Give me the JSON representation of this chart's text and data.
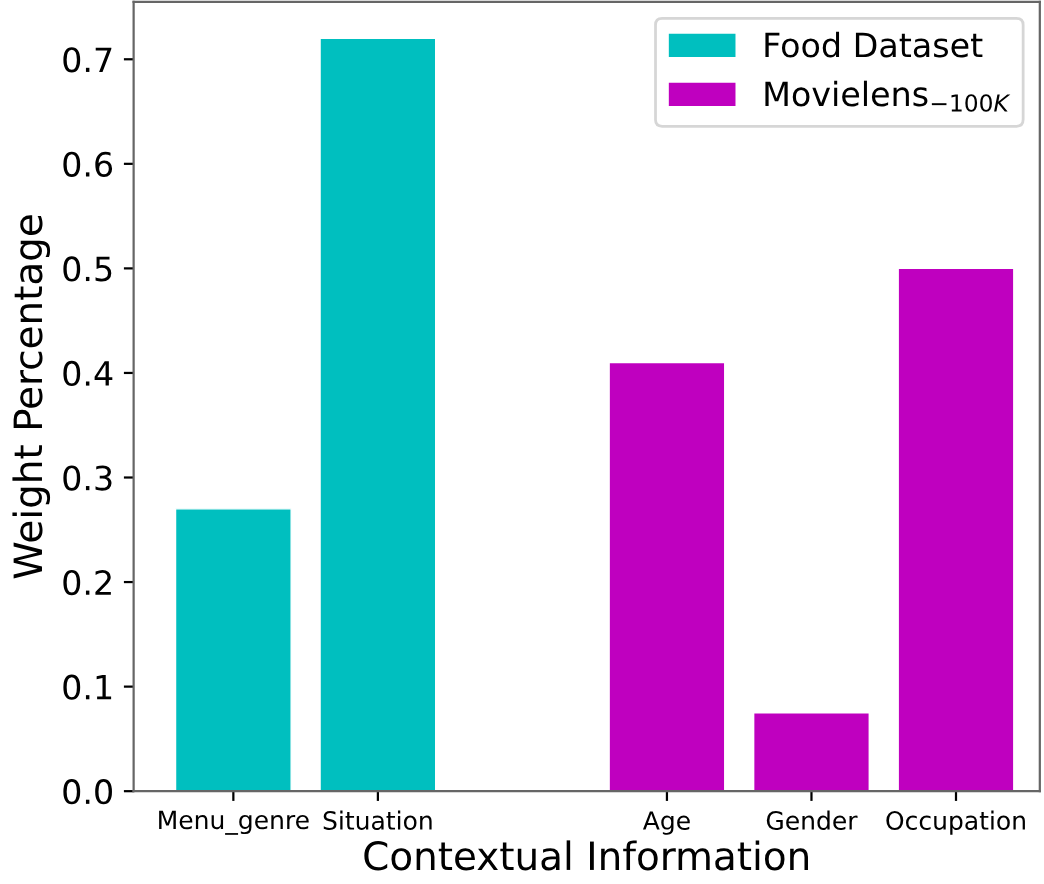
{
  "chart_data": {
    "type": "bar",
    "xlabel": "Contextual Information",
    "ylabel": "Weight Percentage",
    "categories": [
      "Menu_genre",
      "Situation",
      null,
      "Age",
      "Gender",
      "Occupation"
    ],
    "series": [
      {
        "name": "Food Dataset",
        "color": "#00bfbf",
        "values": [
          0.27,
          0.72,
          null,
          null,
          null,
          null
        ]
      },
      {
        "name": "Movielens$_{−100K}$",
        "color": "#bf00bf",
        "values": [
          null,
          null,
          null,
          0.41,
          0.075,
          0.5
        ]
      }
    ],
    "ylim": [
      0,
      0.755
    ],
    "yticks": [
      {
        "value": 0,
        "label": "0.0"
      },
      0.1,
      0.2,
      0.3,
      0.4,
      0.5,
      0.6,
      0.7
    ],
    "legend": "top right"
  }
}
